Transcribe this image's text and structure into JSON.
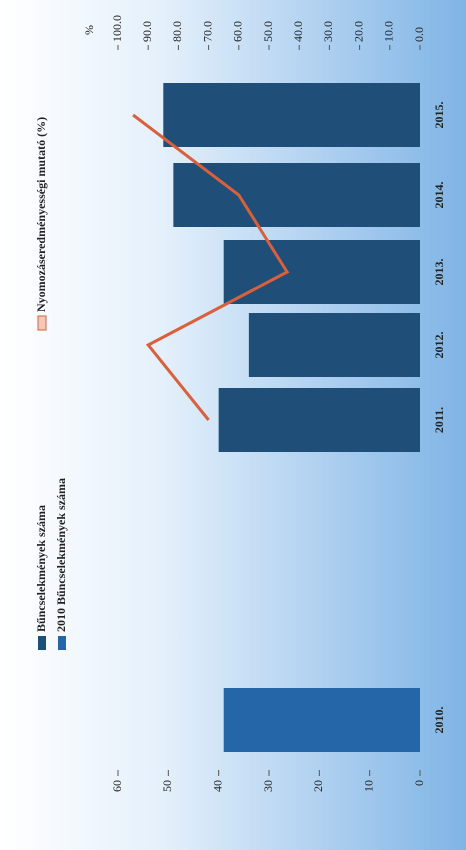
{
  "chart_data": {
    "type": "bar_line",
    "categories": [
      "2010.",
      "2011.",
      "2012.",
      "2013.",
      "2014.",
      "2015."
    ],
    "series": [
      {
        "name": "Bűncselekmények száma",
        "type": "bar",
        "color": "#1f4e79",
        "values": [
          null,
          40,
          34,
          39,
          49,
          51
        ]
      },
      {
        "name": "2010 Bűncselekmények száma",
        "type": "bar",
        "color": "#2566a8",
        "values": [
          39,
          null,
          null,
          null,
          null,
          null
        ]
      },
      {
        "name": "Nyomozáseredményességi mutató (%)",
        "type": "line",
        "axis": "y2",
        "color": "#d9603b",
        "values": [
          null,
          70,
          90,
          44,
          60,
          95
        ]
      }
    ],
    "ylim": [
      0,
      60
    ],
    "yticks": [
      0,
      10,
      20,
      30,
      40,
      50,
      60
    ],
    "y2lim": [
      0,
      100
    ],
    "y2ticks": [
      {
        "value": 0,
        "label": "0.0"
      },
      {
        "value": 10,
        "label": "10.0"
      },
      {
        "value": 20,
        "label": "20.0"
      },
      {
        "value": 30,
        "label": "30.0"
      },
      {
        "value": 40,
        "label": "40.0"
      },
      {
        "value": 50,
        "label": "50.0"
      },
      {
        "value": 60,
        "label": "60.0"
      },
      {
        "value": 70,
        "label": "70.0"
      },
      {
        "value": 80,
        "label": "80.0"
      },
      {
        "value": 90,
        "label": "90.0"
      },
      {
        "value": 100,
        "label": "100.0"
      }
    ],
    "y2_unit": "%"
  }
}
